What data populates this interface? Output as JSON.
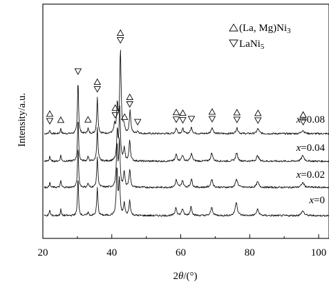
{
  "chart_data": {
    "type": "line",
    "xlabel_parts": [
      "2",
      "θ",
      "/(°)"
    ],
    "ylabel": "Intensity/a.u.",
    "xlim": [
      20,
      103
    ],
    "xticks": [
      20,
      40,
      60,
      80,
      100
    ],
    "grid": false,
    "legend": {
      "placement": "top-right",
      "entries": [
        {
          "marker": "triangle-up",
          "phase": "La-Mg-Ni3",
          "text_parts": [
            "(La, Mg)Ni",
            "3"
          ]
        },
        {
          "marker": "triangle-down",
          "phase": "LaNi5",
          "text_parts": [
            "LaNi",
            "5"
          ]
        }
      ]
    },
    "series": [
      {
        "label_var": "x",
        "label_value": "=0.08",
        "offset": 3,
        "peaks": [
          [
            22.0,
            6
          ],
          [
            25.2,
            8
          ],
          [
            30.2,
            78
          ],
          [
            33.1,
            8
          ],
          [
            35.8,
            52
          ],
          [
            40.8,
            12
          ],
          [
            41.6,
            40
          ],
          [
            42.5,
            120
          ],
          [
            43.5,
            12
          ],
          [
            45.3,
            34
          ],
          [
            47.5,
            4
          ],
          [
            58.7,
            8
          ],
          [
            60.6,
            7
          ],
          [
            63.1,
            9
          ],
          [
            69.1,
            9
          ],
          [
            76.3,
            8
          ],
          [
            82.4,
            7
          ],
          [
            95.4,
            5
          ]
        ]
      },
      {
        "label_var": "x",
        "label_value": "=0.04",
        "offset": 2,
        "peaks": [
          [
            22.0,
            8
          ],
          [
            25.2,
            9
          ],
          [
            30.2,
            62
          ],
          [
            33.1,
            7
          ],
          [
            35.8,
            48
          ],
          [
            41.6,
            42
          ],
          [
            42.3,
            75
          ],
          [
            43.6,
            18
          ],
          [
            45.2,
            30
          ],
          [
            58.7,
            10
          ],
          [
            60.5,
            9
          ],
          [
            63.1,
            11
          ],
          [
            69.0,
            12
          ],
          [
            76.2,
            12
          ],
          [
            82.3,
            8
          ],
          [
            95.4,
            8
          ]
        ]
      },
      {
        "label_var": "x",
        "label_value": "=0.02",
        "offset": 1,
        "peaks": [
          [
            22.0,
            8
          ],
          [
            25.2,
            10
          ],
          [
            30.2,
            58
          ],
          [
            33.1,
            6
          ],
          [
            35.8,
            44
          ],
          [
            41.5,
            60
          ],
          [
            42.2,
            65
          ],
          [
            43.6,
            22
          ],
          [
            45.2,
            26
          ],
          [
            58.7,
            11
          ],
          [
            60.5,
            10
          ],
          [
            63.1,
            12
          ],
          [
            69.0,
            12
          ],
          [
            76.2,
            12
          ],
          [
            82.3,
            8
          ],
          [
            95.4,
            7
          ]
        ]
      },
      {
        "label_var": "x",
        "label_value": "=0",
        "offset": 0,
        "peaks": [
          [
            22.0,
            9
          ],
          [
            25.2,
            9
          ],
          [
            30.2,
            55
          ],
          [
            33.1,
            5
          ],
          [
            35.8,
            40
          ],
          [
            41.5,
            68
          ],
          [
            42.2,
            50
          ],
          [
            43.6,
            18
          ],
          [
            45.2,
            22
          ],
          [
            58.6,
            12
          ],
          [
            60.5,
            10
          ],
          [
            63.0,
            13
          ],
          [
            69.0,
            12
          ],
          [
            76.1,
            20
          ],
          [
            82.3,
            9
          ],
          [
            95.4,
            7
          ]
        ]
      }
    ],
    "markers": [
      {
        "x": 22.0,
        "up": true,
        "down": true
      },
      {
        "x": 25.2,
        "up": true,
        "down": false
      },
      {
        "x": 30.2,
        "up": false,
        "down": true
      },
      {
        "x": 33.1,
        "up": true,
        "down": false
      },
      {
        "x": 35.8,
        "up": true,
        "down": true
      },
      {
        "x": 41.0,
        "up": true,
        "down": true
      },
      {
        "x": 42.5,
        "up": true,
        "down": true
      },
      {
        "x": 43.7,
        "up": true,
        "down": false
      },
      {
        "x": 45.2,
        "up": true,
        "down": true
      },
      {
        "x": 47.5,
        "up": false,
        "down": true
      },
      {
        "x": 58.7,
        "up": true,
        "down": true
      },
      {
        "x": 60.6,
        "up": true,
        "down": true
      },
      {
        "x": 63.1,
        "up": false,
        "down": true
      },
      {
        "x": 69.1,
        "up": true,
        "down": true
      },
      {
        "x": 76.3,
        "up": true,
        "down": true
      },
      {
        "x": 82.4,
        "up": true,
        "down": true
      },
      {
        "x": 95.5,
        "up": true,
        "down": true
      }
    ]
  }
}
